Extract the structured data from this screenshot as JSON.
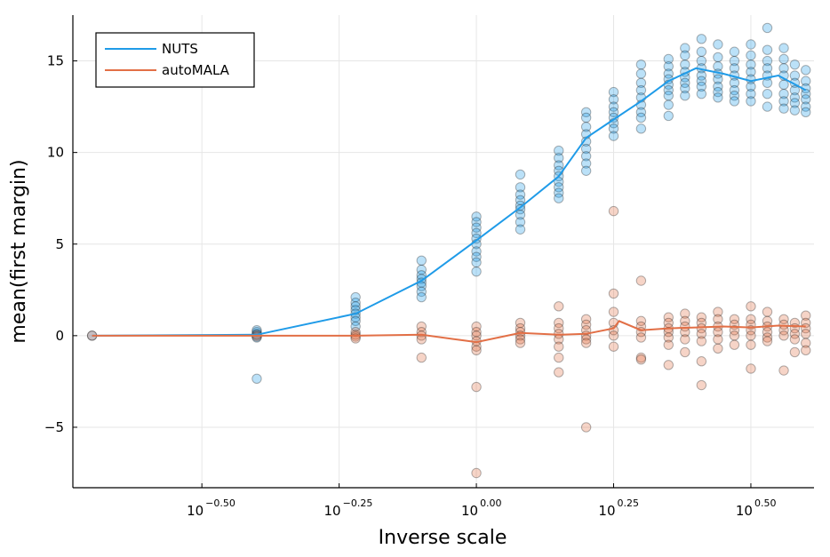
{
  "chart_data": {
    "type": "scatter",
    "xscale": "log10",
    "xlabel": "Inverse scale",
    "ylabel": "mean(first margin)",
    "xlim_log10": [
      -0.735,
      0.615
    ],
    "ylim": [
      -8.3,
      17.5
    ],
    "xticks": [
      {
        "log10": -0.5,
        "base": "10",
        "exp": "−0.50"
      },
      {
        "log10": -0.25,
        "base": "10",
        "exp": "−0.25"
      },
      {
        "log10": 0.0,
        "base": "10",
        "exp": "0.00"
      },
      {
        "log10": 0.25,
        "base": "10",
        "exp": "0.25"
      },
      {
        "log10": 0.5,
        "base": "10",
        "exp": "0.50"
      }
    ],
    "yticks": [
      {
        "value": -5,
        "label": "−5"
      },
      {
        "value": 0,
        "label": "0"
      },
      {
        "value": 5,
        "label": "5"
      },
      {
        "value": 10,
        "label": "10"
      },
      {
        "value": 15,
        "label": "15"
      }
    ],
    "legend": {
      "position": "top-left"
    },
    "series": [
      {
        "name": "NUTS",
        "color": "#1f9be8",
        "line_x_log10": [
          -0.7,
          -0.4,
          -0.22,
          -0.1,
          0.0,
          0.08,
          0.15,
          0.2,
          0.25,
          0.3,
          0.35,
          0.4,
          0.45,
          0.5,
          0.55,
          0.6
        ],
        "line_y": [
          0.0,
          0.05,
          1.2,
          3.0,
          5.2,
          7.0,
          8.7,
          10.8,
          11.8,
          12.8,
          13.9,
          14.6,
          14.3,
          13.9,
          14.2,
          13.4
        ],
        "points": [
          {
            "x": -0.7,
            "y": [
              0.0
            ]
          },
          {
            "x": -0.4,
            "y": [
              0.3,
              0.2,
              0.1,
              0.0,
              -0.1,
              -2.35
            ]
          },
          {
            "x": -0.22,
            "y": [
              2.1,
              1.8,
              1.6,
              1.4,
              1.2,
              1.0,
              0.8,
              0.5
            ]
          },
          {
            "x": -0.1,
            "y": [
              4.1,
              3.6,
              3.3,
              3.1,
              2.9,
              2.7,
              2.4,
              2.1
            ]
          },
          {
            "x": 0.0,
            "y": [
              6.5,
              6.2,
              5.9,
              5.6,
              5.3,
              5.0,
              4.6,
              4.3,
              4.0,
              3.5
            ]
          },
          {
            "x": 0.08,
            "y": [
              8.8,
              8.1,
              7.7,
              7.4,
              7.1,
              6.9,
              6.6,
              6.2,
              5.8
            ]
          },
          {
            "x": 0.15,
            "y": [
              10.1,
              9.7,
              9.3,
              9.0,
              8.7,
              8.4,
              8.1,
              7.8,
              7.5
            ]
          },
          {
            "x": 0.2,
            "y": [
              12.2,
              11.9,
              11.4,
              11.0,
              10.6,
              10.2,
              9.8,
              9.4,
              9.0
            ]
          },
          {
            "x": 0.25,
            "y": [
              13.3,
              12.9,
              12.5,
              12.2,
              11.9,
              11.6,
              11.3,
              10.9
            ]
          },
          {
            "x": 0.3,
            "y": [
              14.8,
              14.3,
              13.8,
              13.4,
              13.0,
              12.6,
              12.2,
              11.9,
              11.3
            ]
          },
          {
            "x": 0.35,
            "y": [
              15.1,
              14.7,
              14.3,
              14.0,
              13.7,
              13.4,
              13.1,
              12.6,
              12.0
            ]
          },
          {
            "x": 0.38,
            "y": [
              15.7,
              15.3,
              14.8,
              14.4,
              14.1,
              13.8,
              13.5,
              13.1
            ]
          },
          {
            "x": 0.41,
            "y": [
              16.2,
              15.5,
              15.0,
              14.6,
              14.2,
              13.9,
              13.6,
              13.2
            ]
          },
          {
            "x": 0.44,
            "y": [
              15.9,
              15.2,
              14.7,
              14.3,
              14.0,
              13.6,
              13.3,
              13.0
            ]
          },
          {
            "x": 0.47,
            "y": [
              15.5,
              15.0,
              14.6,
              14.2,
              13.8,
              13.4,
              13.1,
              12.8
            ]
          },
          {
            "x": 0.5,
            "y": [
              15.9,
              15.3,
              14.8,
              14.4,
              14.0,
              13.6,
              13.2,
              12.8
            ]
          },
          {
            "x": 0.53,
            "y": [
              16.8,
              15.6,
              15.0,
              14.6,
              14.2,
              13.8,
              13.2,
              12.5
            ]
          },
          {
            "x": 0.56,
            "y": [
              15.7,
              15.1,
              14.6,
              14.2,
              13.7,
              13.2,
              12.8,
              12.4
            ]
          },
          {
            "x": 0.58,
            "y": [
              14.8,
              14.2,
              13.8,
              13.4,
              13.0,
              12.7,
              12.3
            ]
          },
          {
            "x": 0.6,
            "y": [
              14.5,
              13.9,
              13.5,
              13.2,
              12.9,
              12.5,
              12.2
            ]
          }
        ]
      },
      {
        "name": "autoMALA",
        "color": "#e26f46",
        "line_x_log10": [
          -0.7,
          -0.4,
          -0.22,
          -0.1,
          0.0,
          0.08,
          0.15,
          0.2,
          0.25,
          0.26,
          0.3,
          0.35,
          0.4,
          0.45,
          0.5,
          0.55,
          0.6
        ],
        "line_y": [
          0.0,
          0.0,
          0.0,
          0.05,
          -0.35,
          0.15,
          0.05,
          0.1,
          0.4,
          0.8,
          0.3,
          0.4,
          0.45,
          0.5,
          0.45,
          0.55,
          0.5
        ],
        "points": [
          {
            "x": -0.7,
            "y": [
              0.0
            ]
          },
          {
            "x": -0.4,
            "y": [
              0.05,
              -0.05
            ]
          },
          {
            "x": -0.22,
            "y": [
              0.2,
              0.05,
              -0.05,
              -0.15
            ]
          },
          {
            "x": -0.1,
            "y": [
              0.5,
              0.2,
              0.0,
              -0.2,
              -1.2
            ]
          },
          {
            "x": 0.0,
            "y": [
              0.5,
              0.2,
              0.0,
              -0.3,
              -0.6,
              -0.8,
              -2.8,
              -7.5
            ]
          },
          {
            "x": 0.08,
            "y": [
              0.7,
              0.4,
              0.2,
              0.0,
              -0.2,
              -0.4
            ]
          },
          {
            "x": 0.15,
            "y": [
              1.6,
              0.7,
              0.4,
              0.1,
              -0.2,
              -0.6,
              -1.2,
              -2.0
            ]
          },
          {
            "x": 0.2,
            "y": [
              0.9,
              0.6,
              0.3,
              0.0,
              -0.2,
              -0.4,
              -5.0
            ]
          },
          {
            "x": 0.25,
            "y": [
              6.8,
              2.3,
              1.3,
              0.7,
              0.3,
              0.0,
              -0.6
            ]
          },
          {
            "x": 0.3,
            "y": [
              3.0,
              0.8,
              0.5,
              0.2,
              -0.1,
              -1.2,
              -1.3
            ]
          },
          {
            "x": 0.35,
            "y": [
              1.0,
              0.7,
              0.4,
              0.2,
              -0.1,
              -0.5,
              -1.6
            ]
          },
          {
            "x": 0.38,
            "y": [
              1.2,
              0.8,
              0.5,
              0.2,
              -0.2,
              -0.9
            ]
          },
          {
            "x": 0.41,
            "y": [
              1.0,
              0.7,
              0.4,
              0.1,
              -0.3,
              -1.4,
              -2.7
            ]
          },
          {
            "x": 0.44,
            "y": [
              1.3,
              0.9,
              0.5,
              0.2,
              -0.2,
              -0.7
            ]
          },
          {
            "x": 0.47,
            "y": [
              0.9,
              0.6,
              0.3,
              0.0,
              -0.5
            ]
          },
          {
            "x": 0.5,
            "y": [
              1.6,
              0.9,
              0.6,
              0.3,
              0.0,
              -0.5,
              -1.8
            ]
          },
          {
            "x": 0.53,
            "y": [
              1.3,
              0.8,
              0.5,
              0.2,
              -0.1,
              -0.3
            ]
          },
          {
            "x": 0.56,
            "y": [
              0.9,
              0.6,
              0.3,
              0.0,
              -1.9
            ]
          },
          {
            "x": 0.58,
            "y": [
              0.7,
              0.4,
              0.1,
              -0.2,
              -0.9
            ]
          },
          {
            "x": 0.6,
            "y": [
              1.1,
              0.7,
              0.4,
              0.1,
              -0.4,
              -0.8
            ]
          }
        ]
      }
    ]
  }
}
